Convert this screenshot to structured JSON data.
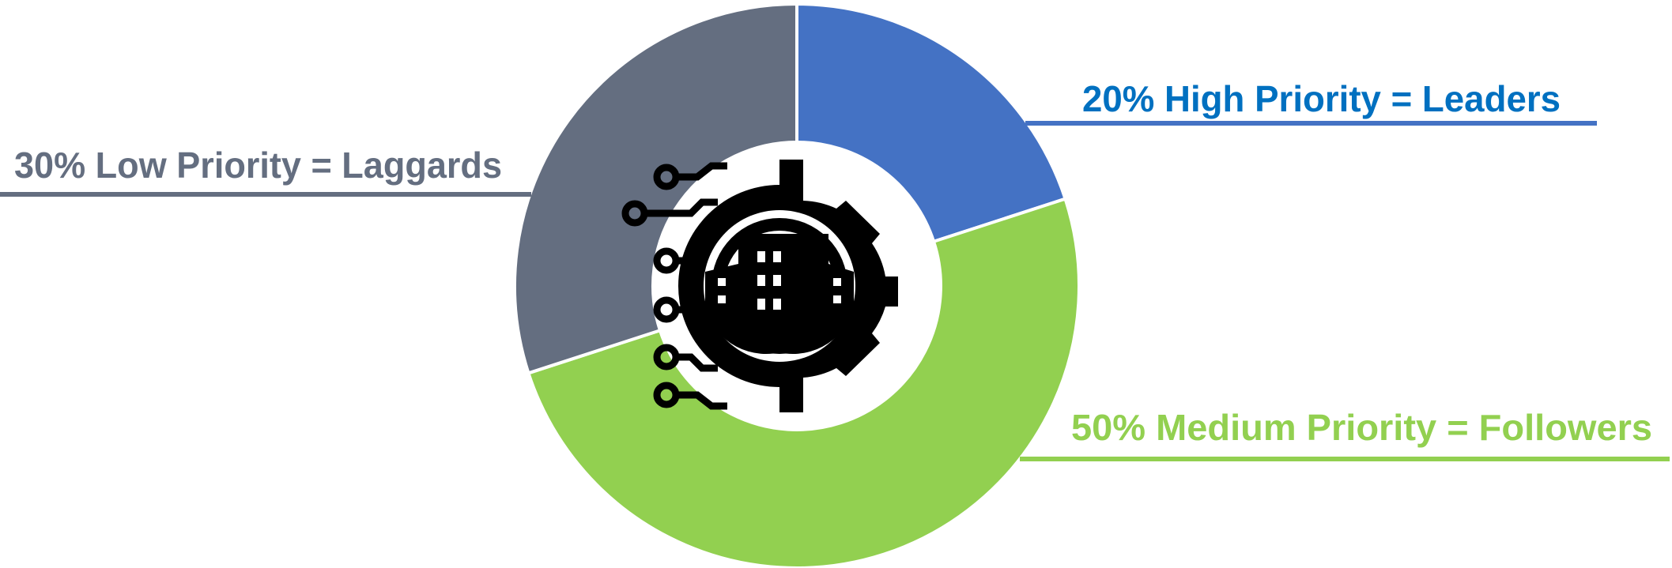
{
  "chart_data": {
    "type": "donut",
    "categories": [
      "High Priority = Leaders",
      "Medium Priority = Followers",
      "Low Priority = Laggards"
    ],
    "values": [
      20,
      50,
      30
    ],
    "value_labels": [
      "20%",
      "50%",
      "30%"
    ],
    "colors": [
      "#4472c4",
      "#92d050",
      "#646e80"
    ],
    "label_colors": [
      "#0070c0",
      "#92d050",
      "#646e80"
    ]
  }
}
